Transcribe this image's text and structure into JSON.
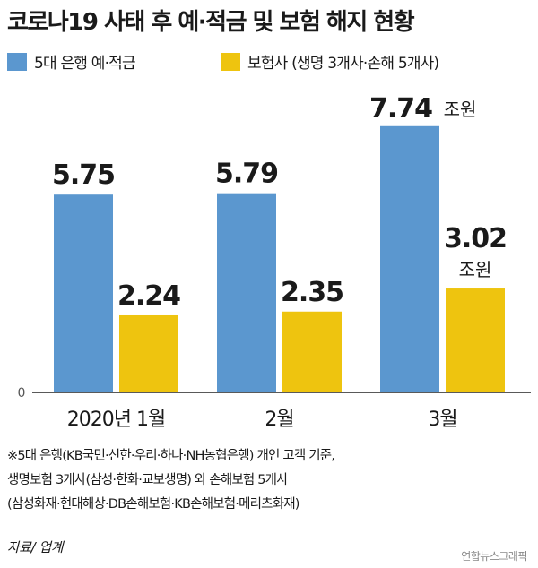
{
  "title": "코로나19 사태 후 예·적금 및 보험 해지 현황",
  "chart_data": {
    "type": "bar",
    "categories": [
      "2020년 1월",
      "2월",
      "3월"
    ],
    "series": [
      {
        "name": "5대 은행 예·적금",
        "values": [
          5.75,
          5.79,
          7.74
        ],
        "color": "#5b97cf"
      },
      {
        "name": "보험사 (생명 3개사·손해 5개사)",
        "values": [
          2.24,
          2.35,
          3.02
        ],
        "color": "#eec40f"
      }
    ],
    "value_labels": [
      [
        "5.75",
        "5.79",
        "7.74"
      ],
      [
        "2.24",
        "2.35",
        "3.02"
      ]
    ],
    "unit": "조원",
    "ylim": [
      0,
      8
    ],
    "y_tick_zero": "0",
    "legend": "top"
  },
  "notes": [
    "※5대 은행(KB국민·신한·우리·하나·NH농협은행) 개인 고객 기준,",
    "생명보험 3개사(삼성·한화·교보생명) 와 손해보험 5개사",
    "(삼성화재·현대해상·DB손해보험·KB손해보험·메리츠화재)"
  ],
  "source": "자료/ 업계",
  "credit": "연합뉴스그래픽"
}
